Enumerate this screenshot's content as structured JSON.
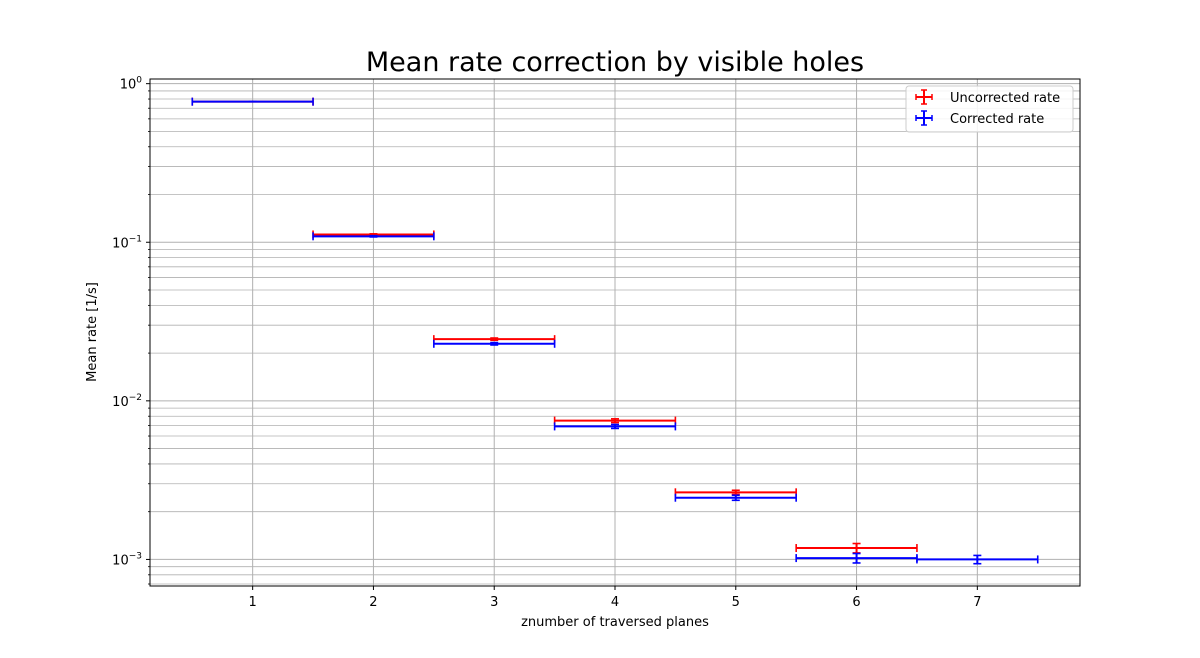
{
  "chart_data": {
    "type": "errorbar",
    "title": "Mean rate correction by visible holes",
    "xlabel": "znumber of traversed planes",
    "ylabel": "Mean rate [1/s]",
    "xlim": [
      0.15,
      7.85
    ],
    "ylim": [
      0.00068,
      1.07
    ],
    "yscale": "log",
    "grid": true,
    "grid_minor_y": true,
    "legend_position": "top-right",
    "x_ticks": [
      {
        "value": 1,
        "label": "1"
      },
      {
        "value": 2,
        "label": "2"
      },
      {
        "value": 3,
        "label": "3"
      },
      {
        "value": 4,
        "label": "4"
      },
      {
        "value": 5,
        "label": "5"
      },
      {
        "value": 6,
        "label": "6"
      },
      {
        "value": 7,
        "label": "7"
      }
    ],
    "y_ticks": [
      {
        "value": 1,
        "base": "10",
        "exp": "0"
      },
      {
        "value": 0.1,
        "base": "10",
        "exp": "−1"
      },
      {
        "value": 0.01,
        "base": "10",
        "exp": "−2"
      },
      {
        "value": 0.001,
        "base": "10",
        "exp": "−3"
      }
    ],
    "series": [
      {
        "name": "Uncorrected rate",
        "color": "#ff0000",
        "points": [
          {
            "x": 1,
            "xerr": 0.5,
            "y": 0.77,
            "yerr": [
              0,
              0
            ]
          },
          {
            "x": 2,
            "xerr": 0.5,
            "y": 0.112,
            "yerr": [
              0.001,
              0.001
            ]
          },
          {
            "x": 3,
            "xerr": 0.5,
            "y": 0.0245,
            "yerr": [
              0.0004,
              0.0004
            ]
          },
          {
            "x": 4,
            "xerr": 0.5,
            "y": 0.0075,
            "yerr": [
              0.0002,
              0.0002
            ]
          },
          {
            "x": 5,
            "xerr": 0.5,
            "y": 0.00265,
            "yerr": [
              8e-05,
              8e-05
            ]
          },
          {
            "x": 6,
            "xerr": 0.5,
            "y": 0.00118,
            "yerr": [
              8e-05,
              8e-05
            ]
          }
        ]
      },
      {
        "name": "Corrected rate",
        "color": "#0000ff",
        "points": [
          {
            "x": 1,
            "xerr": 0.5,
            "y": 0.77,
            "yerr": [
              0,
              0
            ]
          },
          {
            "x": 2,
            "xerr": 0.5,
            "y": 0.109,
            "yerr": [
              0.001,
              0.001
            ]
          },
          {
            "x": 3,
            "xerr": 0.5,
            "y": 0.0229,
            "yerr": [
              0.0004,
              0.0004
            ]
          },
          {
            "x": 4,
            "xerr": 0.5,
            "y": 0.0069,
            "yerr": [
              0.0002,
              0.0002
            ]
          },
          {
            "x": 5,
            "xerr": 0.5,
            "y": 0.00245,
            "yerr": [
              9e-05,
              9e-05
            ]
          },
          {
            "x": 6,
            "xerr": 0.5,
            "y": 0.00102,
            "yerr": [
              7e-05,
              7e-05
            ]
          },
          {
            "x": 7,
            "xerr": 0.5,
            "y": 0.001,
            "yerr": [
              6e-05,
              6e-05
            ]
          }
        ]
      }
    ]
  }
}
